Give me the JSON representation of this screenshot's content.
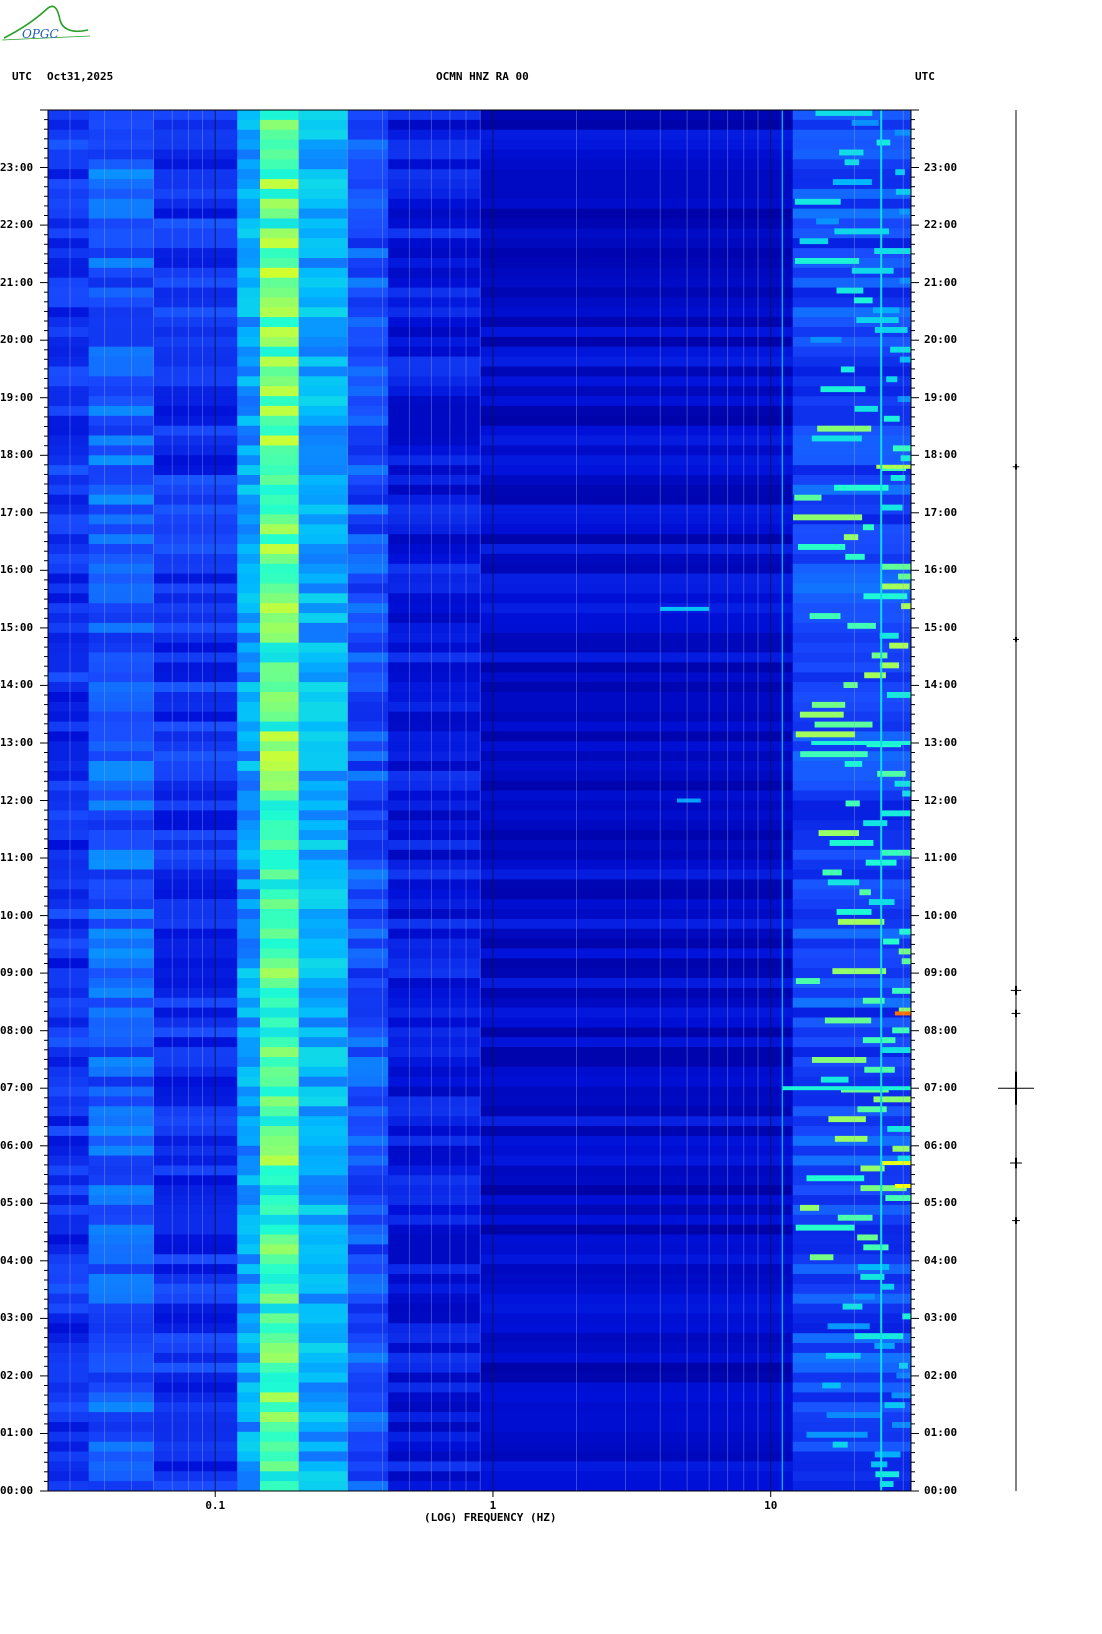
{
  "logo": {
    "text": "OPGC",
    "color": "#2aa02a"
  },
  "header": {
    "left_tz": "UTC",
    "date": "Oct31,2025",
    "station": "OCMN HNZ RA 00",
    "right_tz": "UTC"
  },
  "chart_data": {
    "type": "heatmap",
    "title": "OCMN HNZ RA 00",
    "xlabel": "(LOG) FREQUENCY (HZ)",
    "xscale": "log",
    "xlim": [
      0.025,
      32
    ],
    "x_ticks": [
      {
        "value": 0.1,
        "label": "0.1"
      },
      {
        "value": 1,
        "label": "1"
      },
      {
        "value": 10,
        "label": "10"
      }
    ],
    "y_ticks": [
      "00:00",
      "01:00",
      "02:00",
      "03:00",
      "04:00",
      "05:00",
      "06:00",
      "07:00",
      "08:00",
      "09:00",
      "10:00",
      "11:00",
      "12:00",
      "13:00",
      "14:00",
      "15:00",
      "16:00",
      "17:00",
      "18:00",
      "19:00",
      "20:00",
      "21:00",
      "22:00",
      "23:00"
    ],
    "ylim_hours": [
      0,
      24
    ],
    "colormap": [
      "#0000a0",
      "#0010d8",
      "#1a4cff",
      "#00b8ff",
      "#20ffd0",
      "#c0ff40",
      "#ffff00",
      "#ff2000"
    ],
    "bands": [
      {
        "f_start": 0.025,
        "f_end": 0.035,
        "level": 0.22
      },
      {
        "f_start": 0.035,
        "f_end": 0.06,
        "level": 0.3
      },
      {
        "f_start": 0.06,
        "f_end": 0.12,
        "level": 0.22
      },
      {
        "f_start": 0.12,
        "f_end": 0.145,
        "level": 0.4
      },
      {
        "f_start": 0.145,
        "f_end": 0.2,
        "level": 0.62
      },
      {
        "f_start": 0.2,
        "f_end": 0.3,
        "level": 0.42
      },
      {
        "f_start": 0.3,
        "f_end": 0.42,
        "level": 0.28
      },
      {
        "f_start": 0.42,
        "f_end": 0.9,
        "level": 0.16
      },
      {
        "f_start": 0.9,
        "f_end": 12,
        "level": 0.1
      },
      {
        "f_start": 12,
        "f_end": 32,
        "level": 0.26
      }
    ],
    "events": [
      {
        "hour": 15.33,
        "f_start": 4.0,
        "f_end": 6.0,
        "level": 0.45
      },
      {
        "hour": 12.0,
        "f_start": 4.6,
        "f_end": 5.6,
        "level": 0.4
      },
      {
        "hour": 7.0,
        "f_start": 11,
        "f_end": 32,
        "level": 0.55
      },
      {
        "hour": 8.3,
        "f_start": 28,
        "f_end": 32,
        "level": 0.95
      },
      {
        "hour": 5.7,
        "f_start": 25,
        "f_end": 32,
        "level": 0.8
      },
      {
        "hour": 5.3,
        "f_start": 28,
        "f_end": 32,
        "level": 0.85
      },
      {
        "hour": 13.0,
        "f_start": 14,
        "f_end": 32,
        "level": 0.55
      },
      {
        "hour": 17.8,
        "f_start": 24,
        "f_end": 32,
        "level": 0.7
      }
    ]
  },
  "trace": {
    "color": "#000000",
    "spikes": [
      {
        "hour": 7.0,
        "amplitude": 1.0
      },
      {
        "hour": 5.7,
        "amplitude": 0.25
      },
      {
        "hour": 8.7,
        "amplitude": 0.2
      },
      {
        "hour": 8.3,
        "amplitude": 0.15
      },
      {
        "hour": 4.7,
        "amplitude": 0.12
      },
      {
        "hour": 17.8,
        "amplitude": 0.08
      },
      {
        "hour": 14.8,
        "amplitude": 0.06
      }
    ]
  }
}
